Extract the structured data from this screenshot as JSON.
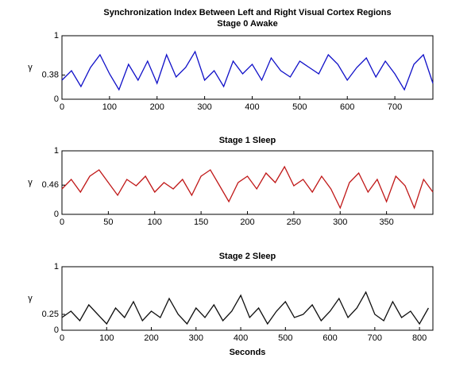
{
  "chart_data": [
    {
      "type": "line",
      "title": "Synchronization Index Between Left and Right Visual Cortex Regions",
      "subtitle": "Stage 0 Awake",
      "ylabel": "γ",
      "color": "#1010c8",
      "x": [
        0,
        20,
        40,
        60,
        80,
        100,
        120,
        140,
        160,
        180,
        200,
        220,
        240,
        260,
        280,
        300,
        320,
        340,
        360,
        380,
        400,
        420,
        440,
        460,
        480,
        500,
        520,
        540,
        560,
        580,
        600,
        620,
        640,
        660,
        680,
        700,
        720,
        740,
        760,
        780
      ],
      "values": [
        0.3,
        0.45,
        0.2,
        0.5,
        0.7,
        0.4,
        0.15,
        0.55,
        0.3,
        0.6,
        0.25,
        0.7,
        0.35,
        0.5,
        0.75,
        0.3,
        0.45,
        0.2,
        0.6,
        0.4,
        0.55,
        0.3,
        0.65,
        0.45,
        0.35,
        0.6,
        0.5,
        0.4,
        0.7,
        0.55,
        0.3,
        0.5,
        0.65,
        0.35,
        0.6,
        0.4,
        0.15,
        0.55,
        0.7,
        0.25
      ],
      "xlim": [
        0,
        780
      ],
      "xticks": [
        0,
        100,
        200,
        300,
        400,
        500,
        600,
        700
      ],
      "ylim": [
        0,
        1
      ],
      "yticks": [
        0,
        0.38,
        1
      ]
    },
    {
      "type": "line",
      "title": "Stage 1 Sleep",
      "ylabel": "γ",
      "color": "#c01818",
      "x": [
        0,
        10,
        20,
        30,
        40,
        50,
        60,
        70,
        80,
        90,
        100,
        110,
        120,
        130,
        140,
        150,
        160,
        170,
        180,
        190,
        200,
        210,
        220,
        230,
        240,
        250,
        260,
        270,
        280,
        290,
        300,
        310,
        320,
        330,
        340,
        350,
        360,
        370,
        380,
        390,
        400
      ],
      "values": [
        0.4,
        0.55,
        0.35,
        0.6,
        0.7,
        0.5,
        0.3,
        0.55,
        0.45,
        0.6,
        0.35,
        0.5,
        0.4,
        0.55,
        0.3,
        0.6,
        0.7,
        0.45,
        0.2,
        0.5,
        0.6,
        0.4,
        0.65,
        0.5,
        0.75,
        0.45,
        0.55,
        0.35,
        0.6,
        0.4,
        0.1,
        0.5,
        0.65,
        0.35,
        0.55,
        0.2,
        0.6,
        0.45,
        0.1,
        0.55,
        0.35
      ],
      "xlim": [
        0,
        400
      ],
      "xticks": [
        0,
        50,
        100,
        150,
        200,
        250,
        300,
        350
      ],
      "ylim": [
        0,
        1
      ],
      "yticks": [
        0,
        0.46,
        1
      ]
    },
    {
      "type": "line",
      "title": "Stage 2 Sleep",
      "ylabel": "γ",
      "xlabel": "Seconds",
      "color": "#101010",
      "x": [
        0,
        20,
        40,
        60,
        80,
        100,
        120,
        140,
        160,
        180,
        200,
        220,
        240,
        260,
        280,
        300,
        320,
        340,
        360,
        380,
        400,
        420,
        440,
        460,
        480,
        500,
        520,
        540,
        560,
        580,
        600,
        620,
        640,
        660,
        680,
        700,
        720,
        740,
        760,
        780,
        800,
        820
      ],
      "values": [
        0.2,
        0.3,
        0.15,
        0.4,
        0.25,
        0.1,
        0.35,
        0.2,
        0.45,
        0.15,
        0.3,
        0.2,
        0.5,
        0.25,
        0.1,
        0.35,
        0.2,
        0.4,
        0.15,
        0.3,
        0.55,
        0.2,
        0.35,
        0.1,
        0.3,
        0.45,
        0.2,
        0.25,
        0.4,
        0.15,
        0.3,
        0.5,
        0.2,
        0.35,
        0.6,
        0.25,
        0.15,
        0.45,
        0.2,
        0.3,
        0.1,
        0.35
      ],
      "xlim": [
        0,
        830
      ],
      "xticks": [
        0,
        100,
        200,
        300,
        400,
        500,
        600,
        700,
        800
      ],
      "ylim": [
        0,
        1
      ],
      "yticks": [
        0,
        0.25,
        1
      ]
    }
  ]
}
